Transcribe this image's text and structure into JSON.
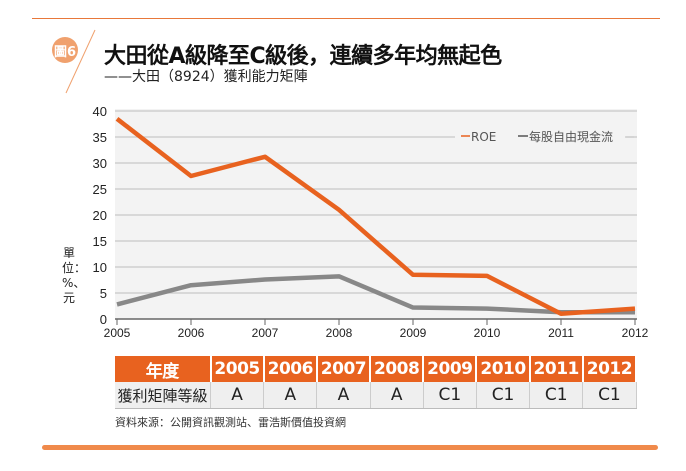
{
  "badge": "圖6",
  "title": "大田從A級降至C級後，連續多年均無起色",
  "subtitle": "——大田（8924）獲利能力矩陣",
  "unit_label": "單位：%、元",
  "chart_data": {
    "type": "line",
    "x": [
      "2005",
      "2006",
      "2007",
      "2008",
      "2009",
      "2010",
      "2011",
      "2012"
    ],
    "ylim": [
      0,
      40
    ],
    "yticks": [
      "0",
      "5",
      "10",
      "15",
      "20",
      "25",
      "30",
      "35",
      "40"
    ],
    "grid": true,
    "legend_position": "top-right",
    "series": [
      {
        "name": "ROE",
        "color": "#e8621f",
        "values": [
          38.5,
          27.5,
          31.2,
          21.0,
          8.5,
          8.3,
          1.0,
          2.0
        ]
      },
      {
        "name": "每股自由現金流",
        "color": "#888888",
        "values": [
          2.8,
          6.5,
          7.6,
          8.2,
          2.2,
          2.0,
          1.3,
          1.3
        ]
      }
    ]
  },
  "table": {
    "header_label": "年度",
    "row_label": "獲利矩陣等級",
    "years": [
      "2005",
      "2006",
      "2007",
      "2008",
      "2009",
      "2010",
      "2011",
      "2012"
    ],
    "grades": [
      "A",
      "A",
      "A",
      "A",
      "C1",
      "C1",
      "C1",
      "C1"
    ]
  },
  "source": "資料來源：公開資訊觀測站、雷浩斯價值投資網"
}
